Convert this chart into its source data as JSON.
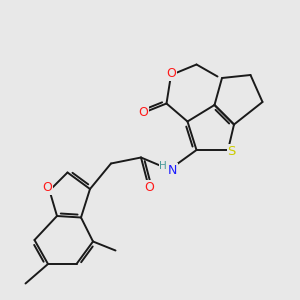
{
  "background_color": "#e8e8e8",
  "atom_colors": {
    "C": "#1a1a1a",
    "H": "#4a9a9a",
    "N": "#1a1aff",
    "O": "#ff1a1a",
    "S": "#cccc00"
  },
  "bond_color": "#1a1a1a",
  "bond_width": 1.4,
  "figsize": [
    3.0,
    3.0
  ],
  "dpi": 100,
  "font_size": 9.0
}
